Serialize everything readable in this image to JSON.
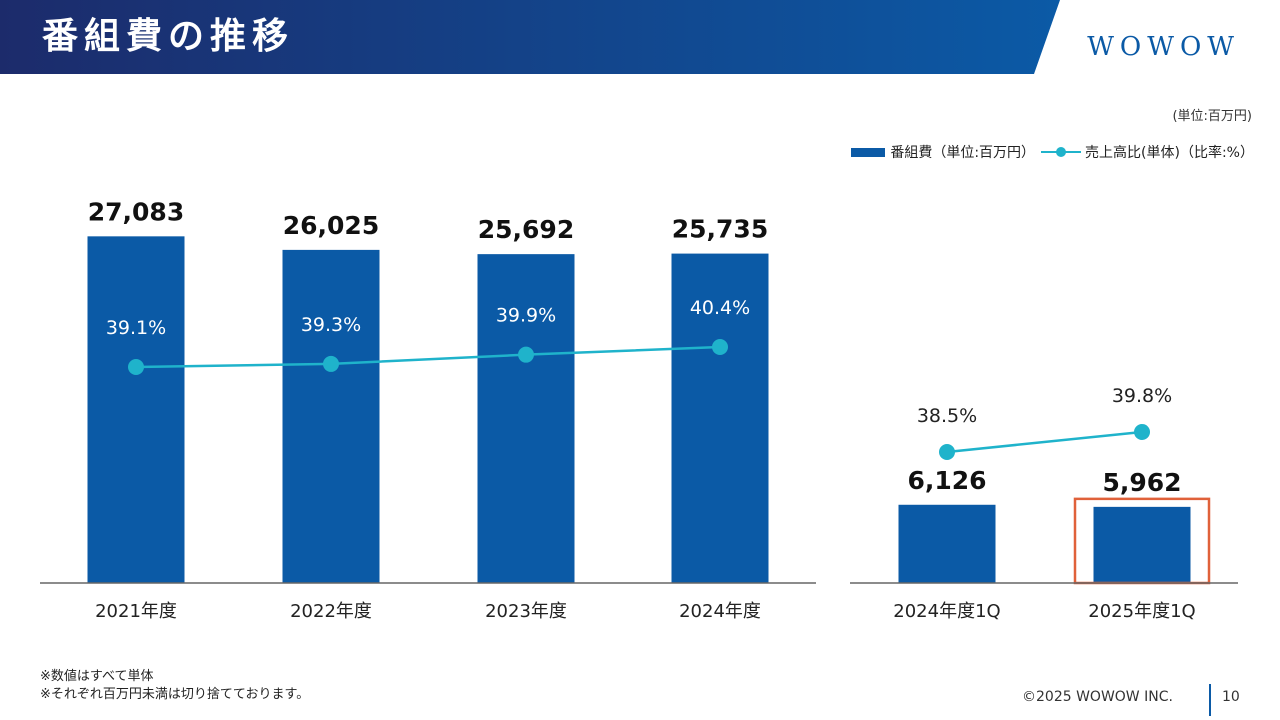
{
  "header": {
    "title": "番組費の推移",
    "logo": "WOWOW"
  },
  "unit_note": "(単位:百万円)",
  "legend": {
    "bar_label": "番組費（単位:百万円）",
    "line_label": "売上高比(単体)（比率:%）"
  },
  "colors": {
    "header_dark": "#1c2b6b",
    "header_light": "#0b5aa6",
    "bar": "#0b5aa6",
    "line": "#1fb3cb",
    "highlight": "#e0613a",
    "axis": "#666666"
  },
  "chart_data": [
    {
      "type": "bar",
      "categories": [
        "2021年度",
        "2022年度",
        "2023年度",
        "2024年度"
      ],
      "series": [
        {
          "name": "番組費（単位:百万円）",
          "type": "bar",
          "values": [
            27083,
            26025,
            25692,
            25735
          ],
          "labels": [
            "27,083",
            "26,025",
            "25,692",
            "25,735"
          ]
        },
        {
          "name": "売上高比(単体)（比率:%）",
          "type": "line",
          "values": [
            39.1,
            39.3,
            39.9,
            40.4
          ],
          "labels": [
            "39.1%",
            "39.3%",
            "39.9%",
            "40.4%"
          ]
        }
      ]
    },
    {
      "type": "bar",
      "categories": [
        "2024年度1Q",
        "2025年度1Q"
      ],
      "highlight": "2025年度1Q",
      "series": [
        {
          "name": "番組費（単位:百万円）",
          "type": "bar",
          "values": [
            6126,
            5962
          ],
          "labels": [
            "6,126",
            "5,962"
          ]
        },
        {
          "name": "売上高比(単体)（比率:%）",
          "type": "line",
          "values": [
            38.5,
            39.8
          ],
          "labels": [
            "38.5%",
            "39.8%"
          ]
        }
      ]
    }
  ],
  "footnotes": [
    "※数値はすべて単体",
    "※それぞれ百万円未満は切り捨てております。"
  ],
  "footer": {
    "copyright": "©2025 WOWOW INC.",
    "page_number": "10"
  }
}
